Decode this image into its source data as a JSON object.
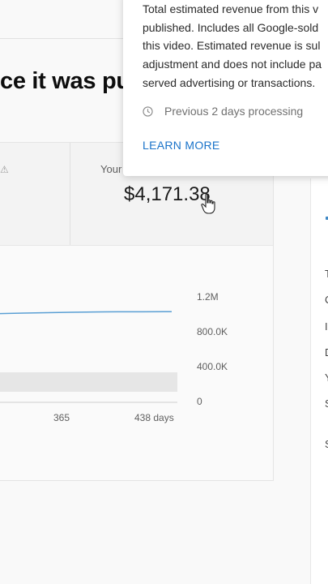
{
  "header": {
    "title": "ce it was pu"
  },
  "metric": {
    "label": "Your",
    "value": "$4,171.38"
  },
  "chart_data": {
    "type": "line",
    "y_ticks": [
      "1.2M",
      "800.0K",
      "400.0K",
      "0"
    ],
    "x_ticks": [
      "365",
      "438 days"
    ],
    "series": [
      {
        "x": [
          0,
          60,
          120,
          180,
          240,
          300,
          365,
          420,
          438
        ],
        "y": [
          1010000,
          1015000,
          1020000,
          1025000,
          1028000,
          1030000,
          1030000,
          1031000,
          1032000
        ]
      }
    ],
    "ylim": [
      0,
      1200000
    ],
    "line_color": "#5a9fd4"
  },
  "tooltip": {
    "text": "Total estimated revenue from this v\npublished. Includes all Google-sold\nthis video. Estimated revenue is sul\nadjustment and does not include pa\nserved advertising or transactions.",
    "processing": "Previous 2 days processing",
    "learn_more": "LEARN MORE"
  },
  "right_panel": {
    "letters": [
      "T",
      "C",
      "I",
      "D",
      "Y",
      "S",
      "S"
    ]
  }
}
